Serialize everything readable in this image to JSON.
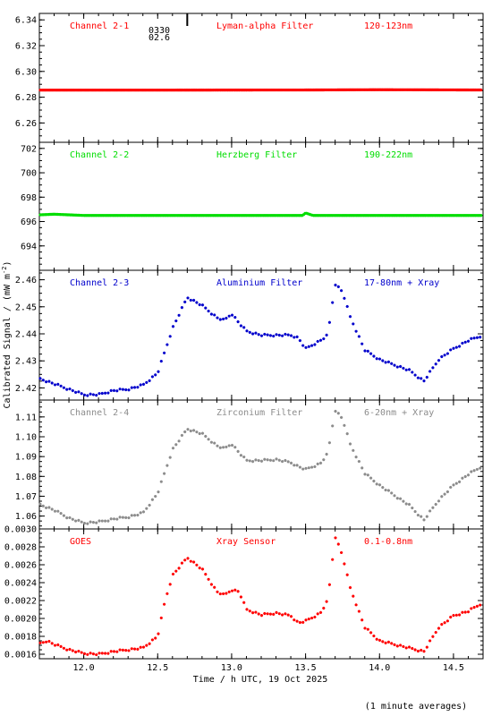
{
  "figure": {
    "xlabel": "Time / h UTC, 19 Oct 2025",
    "ylabel": "Calibrated Signal / (mW m",
    "ylabel_sup": "-2",
    "ylabel_end": ")",
    "footnote": "(1 minute averages)",
    "marker_label_top": "0330",
    "marker_label_bottom": "02.6",
    "marker_x": 12.7
  },
  "chart_data": [
    {
      "type": "scatter",
      "title": "Channel 2-1",
      "filter": "Lyman-alpha Filter",
      "band": "120-123nm",
      "color": "#ff0000",
      "xlim": [
        11.7,
        14.7
      ],
      "ylim": [
        6.245,
        6.345
      ],
      "yticks": [
        6.26,
        6.28,
        6.3,
        6.32,
        6.34
      ],
      "ytick_labels": [
        "6.26",
        "6.28",
        "6.30",
        "6.32",
        "6.34"
      ],
      "xticks": [
        12.0,
        12.5,
        13.0,
        13.5,
        14.0,
        14.5
      ],
      "xtick_labels": [
        "",
        "",
        "",
        "",
        "",
        ""
      ],
      "series_points": [
        [
          11.7,
          6.2855
        ],
        [
          12.5,
          6.2855
        ],
        [
          13.5,
          6.2856
        ],
        [
          14.0,
          6.2858
        ],
        [
          14.7,
          6.2856
        ]
      ],
      "density": 1.2
    },
    {
      "type": "scatter",
      "title": "Channel 2-2",
      "filter": "Herzberg Filter",
      "band": "190-222nm",
      "color": "#00dd00",
      "xlim": [
        11.7,
        14.7
      ],
      "ylim": [
        692.0,
        702.5
      ],
      "yticks": [
        694,
        696,
        698,
        700,
        702
      ],
      "ytick_labels": [
        "694",
        "696",
        "698",
        "700",
        "702"
      ],
      "xticks": [
        12.0,
        12.5,
        13.0,
        13.5,
        14.0,
        14.5
      ],
      "xtick_labels": [
        "",
        "",
        "",
        "",
        "",
        ""
      ],
      "series_points": [
        [
          11.7,
          696.55
        ],
        [
          11.8,
          696.6
        ],
        [
          12.0,
          696.5
        ],
        [
          13.0,
          696.5
        ],
        [
          13.48,
          696.5
        ],
        [
          13.5,
          696.7
        ],
        [
          13.55,
          696.5
        ],
        [
          14.7,
          696.5
        ]
      ],
      "density": 1.2
    },
    {
      "type": "scatter",
      "title": "Channel 2-3",
      "filter": "Aluminium Filter",
      "band": "17-80nm + Xray",
      "color": "#0000cc",
      "xlim": [
        11.7,
        14.7
      ],
      "ylim": [
        2.4155,
        2.4635
      ],
      "yticks": [
        2.42,
        2.43,
        2.44,
        2.45,
        2.46
      ],
      "ytick_labels": [
        "2.42",
        "2.43",
        "2.44",
        "2.45",
        "2.46"
      ],
      "xticks": [
        12.0,
        12.5,
        13.0,
        13.5,
        14.0,
        14.5
      ],
      "xtick_labels": [
        "",
        "",
        "",
        "",
        "",
        ""
      ],
      "series_points": [
        [
          11.7,
          2.4235
        ],
        [
          11.8,
          2.4215
        ],
        [
          11.9,
          2.4195
        ],
        [
          12.0,
          2.4175
        ],
        [
          12.1,
          2.4175
        ],
        [
          12.2,
          2.419
        ],
        [
          12.3,
          2.4195
        ],
        [
          12.4,
          2.421
        ],
        [
          12.5,
          2.4255
        ],
        [
          12.6,
          2.442
        ],
        [
          12.7,
          2.4535
        ],
        [
          12.8,
          2.4505
        ],
        [
          12.9,
          2.446
        ],
        [
          12.95,
          2.445
        ],
        [
          13.0,
          2.4475
        ],
        [
          13.05,
          2.444
        ],
        [
          13.1,
          2.441
        ],
        [
          13.2,
          2.4395
        ],
        [
          13.3,
          2.4395
        ],
        [
          13.4,
          2.4395
        ],
        [
          13.45,
          2.4385
        ],
        [
          13.5,
          2.4345
        ],
        [
          13.6,
          2.4375
        ],
        [
          13.65,
          2.4395
        ],
        [
          13.7,
          2.4585
        ],
        [
          13.75,
          2.4555
        ],
        [
          13.8,
          2.4465
        ],
        [
          13.9,
          2.434
        ],
        [
          14.0,
          2.4305
        ],
        [
          14.1,
          2.4285
        ],
        [
          14.2,
          2.4265
        ],
        [
          14.3,
          2.4225
        ],
        [
          14.4,
          2.4305
        ],
        [
          14.5,
          2.4345
        ],
        [
          14.6,
          2.4375
        ],
        [
          14.7,
          2.4395
        ]
      ],
      "density": 0.55
    },
    {
      "type": "scatter",
      "title": "Channel 2-4",
      "filter": "Zirconium Filter",
      "band": "6-20nm + Xray",
      "color": "#8c8c8c",
      "xlim": [
        11.7,
        14.7
      ],
      "ylim": [
        1.0535,
        1.1185
      ],
      "yticks": [
        1.06,
        1.07,
        1.08,
        1.09,
        1.1,
        1.11
      ],
      "ytick_labels": [
        "1.06",
        "1.07",
        "1.08",
        "1.09",
        "1.10",
        "1.11"
      ],
      "xticks": [
        12.0,
        12.5,
        13.0,
        13.5,
        14.0,
        14.5
      ],
      "xtick_labels": [
        "",
        "",
        "",
        "",
        "",
        ""
      ],
      "series_points": [
        [
          11.7,
          1.066
        ],
        [
          11.8,
          1.063
        ],
        [
          11.9,
          1.059
        ],
        [
          12.0,
          1.0565
        ],
        [
          12.1,
          1.057
        ],
        [
          12.2,
          1.0585
        ],
        [
          12.3,
          1.0595
        ],
        [
          12.4,
          1.0615
        ],
        [
          12.5,
          1.0715
        ],
        [
          12.6,
          1.0935
        ],
        [
          12.7,
          1.104
        ],
        [
          12.8,
          1.1015
        ],
        [
          12.9,
          1.0955
        ],
        [
          12.95,
          1.094
        ],
        [
          13.0,
          1.0965
        ],
        [
          13.05,
          1.092
        ],
        [
          13.1,
          1.088
        ],
        [
          13.2,
          1.088
        ],
        [
          13.3,
          1.0885
        ],
        [
          13.4,
          1.087
        ],
        [
          13.45,
          1.085
        ],
        [
          13.5,
          1.0835
        ],
        [
          13.6,
          1.0865
        ],
        [
          13.65,
          1.0915
        ],
        [
          13.7,
          1.1135
        ],
        [
          13.75,
          1.109
        ],
        [
          13.8,
          1.0965
        ],
        [
          13.9,
          1.0815
        ],
        [
          14.0,
          1.0755
        ],
        [
          14.1,
          1.0705
        ],
        [
          14.2,
          1.0655
        ],
        [
          14.3,
          1.058
        ],
        [
          14.4,
          1.068
        ],
        [
          14.5,
          1.0755
        ],
        [
          14.6,
          1.081
        ],
        [
          14.7,
          1.0855
        ]
      ],
      "density": 0.55
    },
    {
      "type": "scatter",
      "title": "GOES",
      "filter": "Xray Sensor",
      "band": "0.1-0.8nm",
      "color": "#ff0000",
      "xlim": [
        11.7,
        14.7
      ],
      "ylim": [
        0.00155,
        0.003
      ],
      "yticks": [
        0.0016,
        0.0018,
        0.002,
        0.0022,
        0.0024,
        0.0026,
        0.0028,
        0.003
      ],
      "ytick_labels": [
        "0.0016",
        "0.0018",
        "0.0020",
        "0.0022",
        "0.0024",
        "0.0026",
        "0.0028",
        "0.0030"
      ],
      "xticks": [
        12.0,
        12.5,
        13.0,
        13.5,
        14.0,
        14.5
      ],
      "xtick_labels": [
        "12.0",
        "12.5",
        "13.0",
        "13.5",
        "14.0",
        "14.5"
      ],
      "series_points": [
        [
          11.7,
          0.00172
        ],
        [
          11.75,
          0.00175
        ],
        [
          11.8,
          0.00171
        ],
        [
          11.9,
          0.00165
        ],
        [
          12.0,
          0.00161
        ],
        [
          12.1,
          0.0016
        ],
        [
          12.2,
          0.00163
        ],
        [
          12.3,
          0.00165
        ],
        [
          12.4,
          0.00167
        ],
        [
          12.5,
          0.0018
        ],
        [
          12.55,
          0.0022
        ],
        [
          12.6,
          0.00248
        ],
        [
          12.7,
          0.00268
        ],
        [
          12.8,
          0.00255
        ],
        [
          12.9,
          0.0023
        ],
        [
          12.95,
          0.00226
        ],
        [
          13.0,
          0.00232
        ],
        [
          13.05,
          0.0023
        ],
        [
          13.1,
          0.0021
        ],
        [
          13.2,
          0.00204
        ],
        [
          13.3,
          0.00206
        ],
        [
          13.4,
          0.00203
        ],
        [
          13.45,
          0.00195
        ],
        [
          13.5,
          0.00197
        ],
        [
          13.6,
          0.00206
        ],
        [
          13.65,
          0.0022
        ],
        [
          13.7,
          0.00292
        ],
        [
          13.75,
          0.0027
        ],
        [
          13.8,
          0.00235
        ],
        [
          13.9,
          0.0019
        ],
        [
          14.0,
          0.00175
        ],
        [
          14.1,
          0.00171
        ],
        [
          14.2,
          0.00167
        ],
        [
          14.3,
          0.00163
        ],
        [
          14.4,
          0.0019
        ],
        [
          14.5,
          0.00203
        ],
        [
          14.6,
          0.00208
        ],
        [
          14.7,
          0.00218
        ]
      ],
      "density": 0.55
    }
  ]
}
